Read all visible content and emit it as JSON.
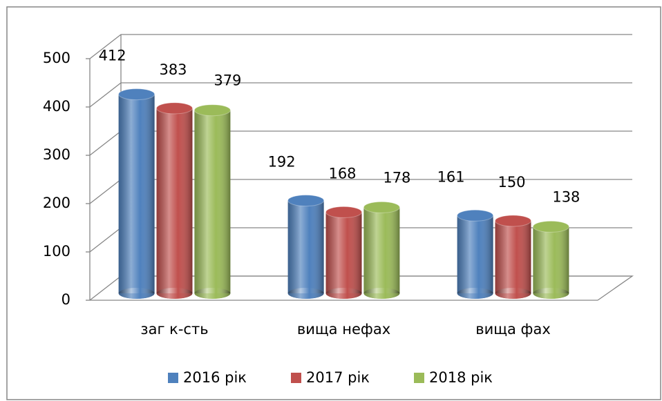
{
  "chart_data": {
    "type": "bar3d",
    "categories": [
      "заг к-сть",
      "вища нефах",
      "вища фах"
    ],
    "series": [
      {
        "name": "2016 рік",
        "color": "#4f81bd",
        "values": [
          412,
          192,
          161
        ]
      },
      {
        "name": "2017 рік",
        "color": "#c0504d",
        "values": [
          383,
          168,
          150
        ]
      },
      {
        "name": "2018 рік",
        "color": "#9bbb59",
        "values": [
          379,
          178,
          138
        ]
      }
    ],
    "ylim": [
      0,
      500
    ],
    "yticks": [
      0,
      100,
      200,
      300,
      400,
      500
    ],
    "grid": true,
    "legend": "bottom"
  }
}
